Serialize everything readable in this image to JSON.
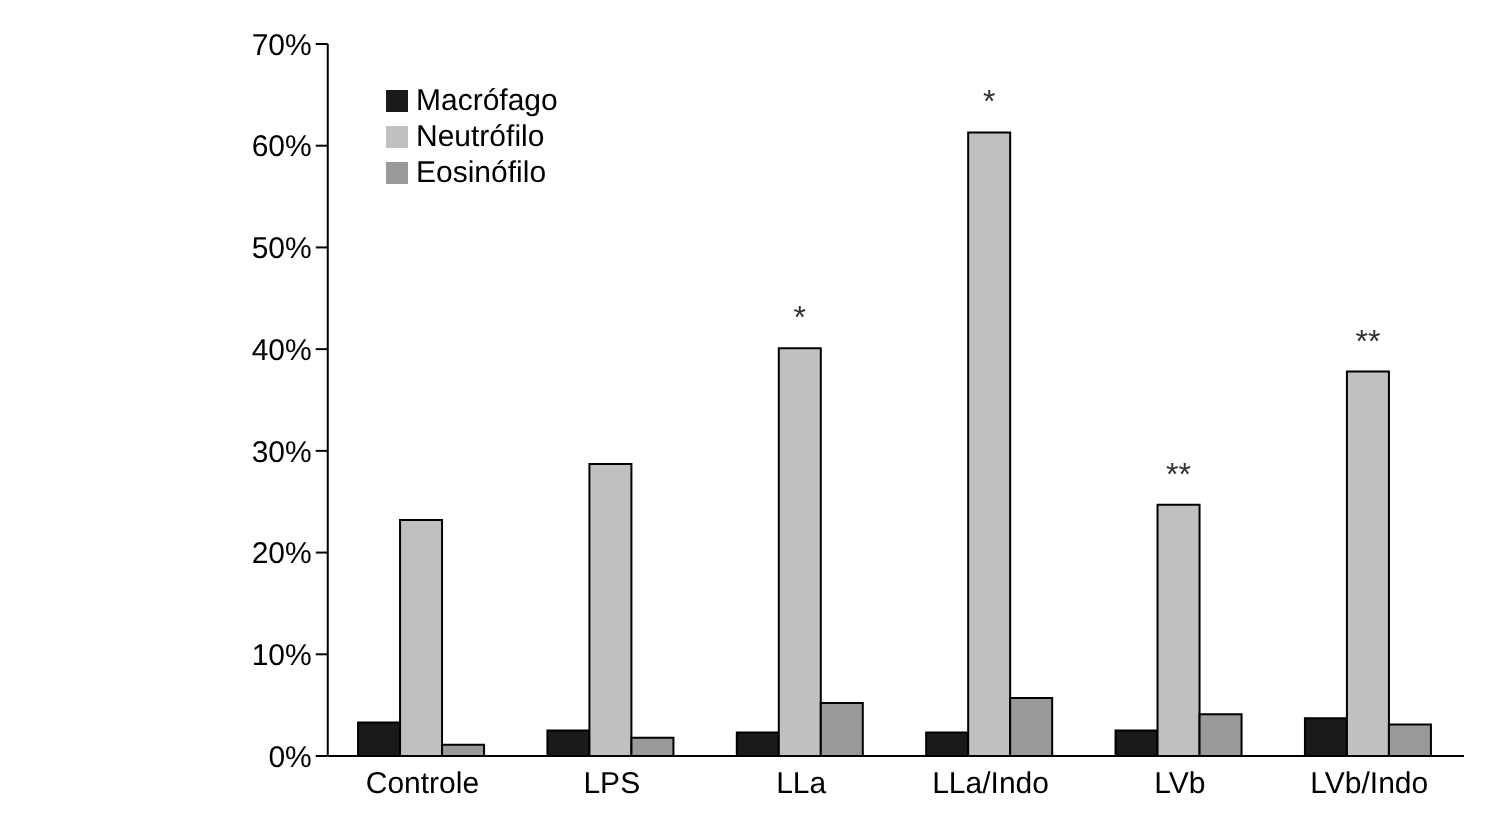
{
  "chart_data": {
    "type": "bar",
    "categories": [
      "Controle",
      "LPS",
      "LLa",
      "LLa/Indo",
      "LVb",
      "LVb/Indo"
    ],
    "series": [
      {
        "name": "Macrófago",
        "color": "#1a1a1a",
        "values": [
          3.3,
          2.5,
          2.3,
          2.3,
          2.5,
          3.7
        ]
      },
      {
        "name": "Neutrófilo",
        "color": "#c0c0c0",
        "values": [
          23.2,
          28.7,
          40.1,
          61.3,
          24.7,
          37.8
        ]
      },
      {
        "name": "Eosinófilo",
        "color": "#999999",
        "values": [
          1.1,
          1.8,
          5.2,
          5.7,
          4.1,
          3.1
        ]
      }
    ],
    "ylim": [
      0,
      70
    ],
    "yticks": [
      {
        "value": 0,
        "label": "0%"
      },
      {
        "value": 10,
        "label": "10%"
      },
      {
        "value": 20,
        "label": "20%"
      },
      {
        "value": 30,
        "label": "30%"
      },
      {
        "value": 40,
        "label": "40%"
      },
      {
        "value": 50,
        "label": "50%"
      },
      {
        "value": 60,
        "label": "60%"
      },
      {
        "value": 70,
        "label": "70%"
      }
    ],
    "annotations": [
      {
        "text": "*",
        "x": "LLa",
        "y": 40.1
      },
      {
        "text": "*",
        "x": "LLa/Indo",
        "y": 61.3
      },
      {
        "text": "**",
        "x": "LVb",
        "y": 24.7
      },
      {
        "text": "**",
        "x": "LVb/Indo",
        "y": 37.8
      }
    ],
    "grid": false,
    "legend": "top left"
  }
}
